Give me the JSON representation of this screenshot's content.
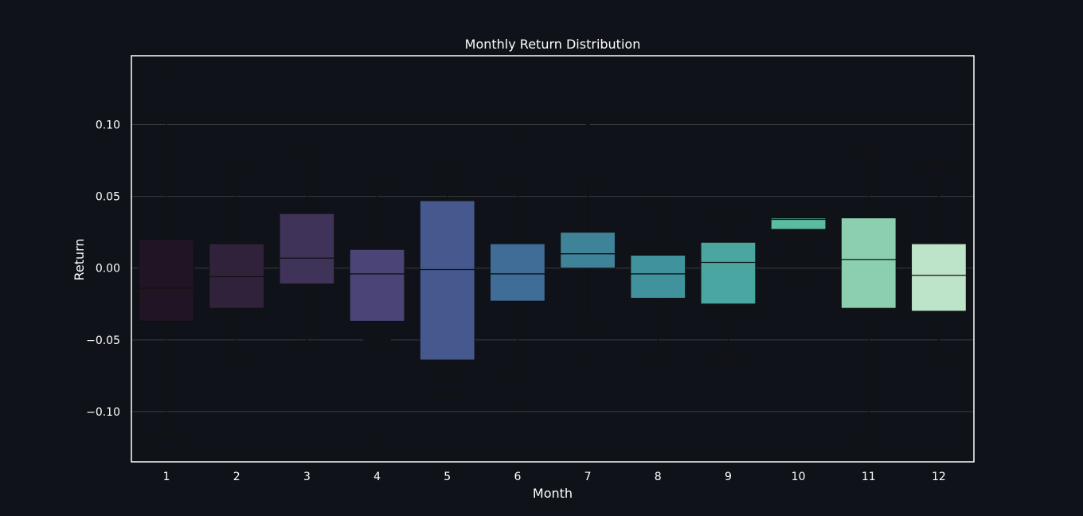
{
  "chart_data": {
    "type": "box",
    "title": "Monthly Return Distribution",
    "xlabel": "Month",
    "ylabel": "Return",
    "ylim": [
      -0.135,
      0.148
    ],
    "yticks": [
      0.1,
      0.05,
      0.0,
      -0.05,
      -0.1
    ],
    "ytick_labels": [
      "0.10",
      "0.05",
      "0.00",
      "−0.05",
      "−0.10"
    ],
    "grid": true,
    "categories": [
      "1",
      "2",
      "3",
      "4",
      "5",
      "6",
      "7",
      "8",
      "9",
      "10",
      "11",
      "12"
    ],
    "boxes": [
      {
        "month": "1",
        "q1": -0.037,
        "median": -0.014,
        "q3": 0.02,
        "whislo": -0.116,
        "whishi": 0.106,
        "outliers": [
          0.136
        ],
        "color": "#211424"
      },
      {
        "month": "2",
        "q1": -0.028,
        "median": -0.006,
        "q3": 0.017,
        "whislo": -0.068,
        "whishi": 0.074,
        "outliers": [],
        "color": "#31223c"
      },
      {
        "month": "3",
        "q1": -0.011,
        "median": 0.007,
        "q3": 0.038,
        "whislo": -0.051,
        "whishi": 0.079,
        "outliers": [],
        "color": "#403359"
      },
      {
        "month": "4",
        "q1": -0.037,
        "median": -0.004,
        "q3": 0.013,
        "whislo": -0.05,
        "whishi": 0.056,
        "outliers": [
          -0.123
        ],
        "color": "#4a4477"
      },
      {
        "month": "5",
        "q1": -0.064,
        "median": -0.001,
        "q3": 0.047,
        "whislo": -0.091,
        "whishi": 0.074,
        "outliers": [],
        "color": "#46598f"
      },
      {
        "month": "6",
        "q1": -0.023,
        "median": -0.004,
        "q3": 0.017,
        "whislo": -0.071,
        "whishi": 0.056,
        "outliers": [
          0.094,
          -0.093
        ],
        "color": "#3f6d98"
      },
      {
        "month": "7",
        "q1": 0.0,
        "median": 0.01,
        "q3": 0.025,
        "whislo": -0.036,
        "whishi": 0.06,
        "outliers": [
          0.099,
          -0.067
        ],
        "color": "#3f8399"
      },
      {
        "month": "8",
        "q1": -0.021,
        "median": -0.004,
        "q3": 0.009,
        "whislo": -0.066,
        "whishi": 0.047,
        "outliers": [],
        "color": "#40939c"
      },
      {
        "month": "9",
        "q1": -0.025,
        "median": 0.004,
        "q3": 0.018,
        "whislo": -0.067,
        "whishi": 0.034,
        "outliers": [],
        "color": "#49a6a0"
      },
      {
        "month": "10",
        "q1": 0.027,
        "median": 0.034,
        "q3": 0.035,
        "whislo": 0.019,
        "whishi": 0.036,
        "outliers": [
          -0.007
        ],
        "color": "#5bbba3"
      },
      {
        "month": "11",
        "q1": -0.028,
        "median": 0.006,
        "q3": 0.035,
        "whislo": -0.12,
        "whishi": 0.085,
        "outliers": [],
        "color": "#8bcfaf"
      },
      {
        "month": "12",
        "q1": -0.03,
        "median": -0.005,
        "q3": 0.017,
        "whislo": -0.065,
        "whishi": 0.075,
        "outliers": [],
        "color": "#bde3c9"
      }
    ]
  },
  "colors": {
    "background": "#0f1218",
    "frame": "#ffffff",
    "grid": "#3a3d42",
    "whisker": "#111111",
    "median": "#111111",
    "text": "#ffffff"
  }
}
